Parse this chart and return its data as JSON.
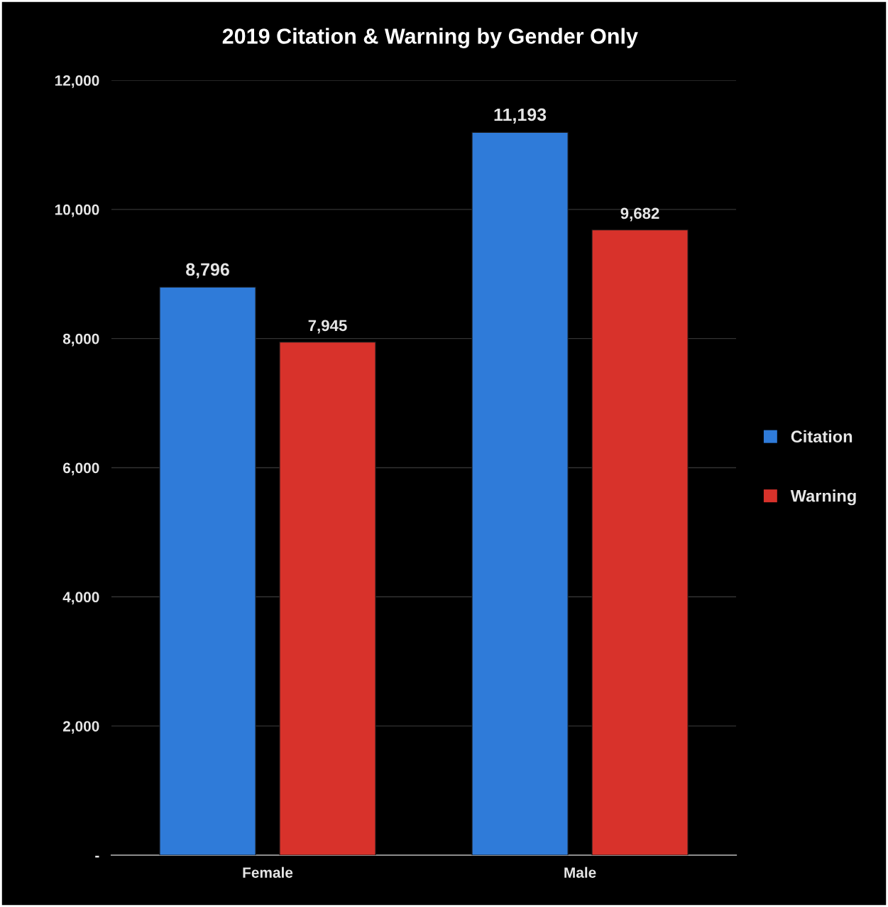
{
  "chart_data": {
    "type": "bar",
    "title": "2019 Citation & Warning by Gender Only",
    "categories": [
      "Female",
      "Male"
    ],
    "series": [
      {
        "name": "Citation",
        "color": "#2f7bd9",
        "values": [
          8796,
          11193
        ],
        "value_labels": [
          "8,796",
          "11,193"
        ]
      },
      {
        "name": "Warning",
        "color": "#d8322b",
        "values": [
          7945,
          9682
        ],
        "value_labels": [
          "7,945",
          "9,682"
        ]
      }
    ],
    "ylim": [
      0,
      12000
    ],
    "yticks": [
      {
        "value": 0,
        "label": "-"
      },
      {
        "value": 2000,
        "label": "2,000"
      },
      {
        "value": 4000,
        "label": "4,000"
      },
      {
        "value": 6000,
        "label": "6,000"
      },
      {
        "value": 8000,
        "label": "8,000"
      },
      {
        "value": 10000,
        "label": "10,000"
      },
      {
        "value": 12000,
        "label": "12,000"
      }
    ],
    "grid": "y",
    "legend": "right"
  }
}
